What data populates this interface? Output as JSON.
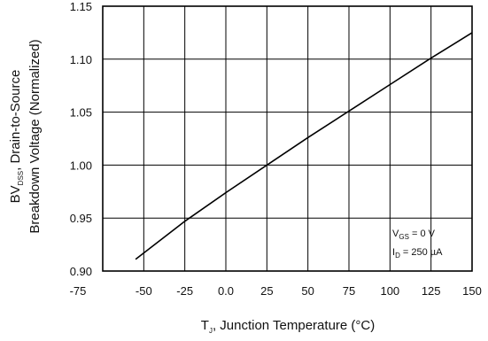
{
  "chart_data": {
    "type": "line",
    "xlabel": {
      "main": "T",
      "sub": "J",
      "rest": ", Junction Temperature (°C)"
    },
    "ylabel": {
      "line1_pre": "BV",
      "line1_sub": "DSS",
      "line1_rest": ", Drain-to-Source",
      "line2": "Breakdown Voltage (Normalized)"
    },
    "x_ticks": [
      "-75",
      "-50",
      "-25",
      "0.0",
      "25",
      "50",
      "75",
      "100",
      "125",
      "150"
    ],
    "x_tick_values": [
      -75,
      -50,
      -25,
      0,
      25,
      50,
      75,
      100,
      125,
      150
    ],
    "y_ticks": [
      "0.90",
      "0.95",
      "1.00",
      "1.05",
      "1.10",
      "1.15"
    ],
    "y_tick_values": [
      0.9,
      0.95,
      1.0,
      1.05,
      1.1,
      1.15
    ],
    "xlim": [
      -75,
      150
    ],
    "ylim": [
      0.9,
      1.15
    ],
    "grid": true,
    "annotations": {
      "vgs_pre": "V",
      "vgs_sub": "GS",
      "vgs_rest": " = 0 V",
      "id_pre": "I",
      "id_sub": "D",
      "id_rest": " = 250 µA"
    },
    "series": [
      {
        "x": [
          -55,
          -25,
          0,
          25,
          50,
          75,
          100,
          125,
          150
        ],
        "y": [
          0.911,
          0.947,
          0.974,
          1.0,
          1.026,
          1.051,
          1.076,
          1.101,
          1.125
        ]
      }
    ]
  }
}
